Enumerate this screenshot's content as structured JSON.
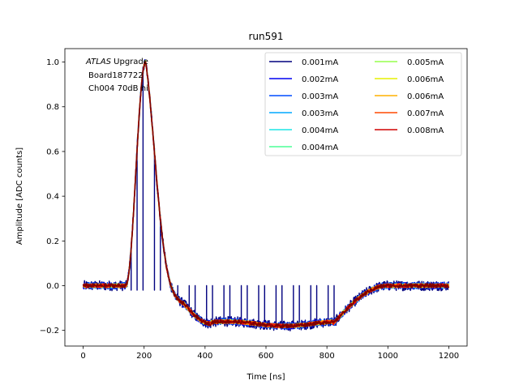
{
  "chart_data": {
    "type": "line",
    "title": "run591",
    "xlabel": "Time [ns]",
    "ylabel": "Amplitude [ADC counts]",
    "xlim": [
      -60,
      1260
    ],
    "ylim": [
      -0.27,
      1.06
    ],
    "xticks": [
      0,
      200,
      400,
      600,
      800,
      1000,
      1200
    ],
    "yticks": [
      -0.2,
      0.0,
      0.2,
      0.4,
      0.6,
      0.8,
      1.0
    ],
    "xtick_labels": [
      "0",
      "200",
      "400",
      "600",
      "800",
      "1000",
      "1200"
    ],
    "ytick_labels": [
      "−0.2",
      "0.0",
      "0.2",
      "0.4",
      "0.6",
      "0.8",
      "1.0"
    ],
    "grid": false,
    "legend_location": "upper-right",
    "legend_columns": 2,
    "annotation": {
      "line1_italic": "ATLAS",
      "line1_rest": " Upgrade",
      "line2": "Board187722",
      "line3": "Ch004 70dB hi"
    },
    "series": [
      {
        "name": "0.001mA",
        "color": "#00007f"
      },
      {
        "name": "0.002mA",
        "color": "#0000f1"
      },
      {
        "name": "0.003mA",
        "color": "#004cff"
      },
      {
        "name": "0.003mA",
        "color": "#00b0ff"
      },
      {
        "name": "0.004mA",
        "color": "#29ffce"
      },
      {
        "name": "0.004mA",
        "color": "#7dff7a"
      },
      {
        "name": "0.005mA",
        "color": "#ceff29"
      },
      {
        "name": "0.006mA",
        "color": "#ffc400"
      },
      {
        "name": "0.006mA",
        "color": "#ff6800"
      },
      {
        "name": "0.007mA",
        "color": "#f10800"
      },
      {
        "name": "0.008mA",
        "color": "#7f0000"
      }
    ],
    "legend_entries": [
      {
        "name": "0.001mA",
        "color": "#00007f"
      },
      {
        "name": "0.002mA",
        "color": "#0000f1"
      },
      {
        "name": "0.003mA",
        "color": "#004cff"
      },
      {
        "name": "0.003mA",
        "color": "#00a8ff"
      },
      {
        "name": "0.004mA",
        "color": "#1ce6e6"
      },
      {
        "name": "0.004mA",
        "color": "#4cff96"
      },
      {
        "name": "0.005mA",
        "color": "#96ff4c"
      },
      {
        "name": "0.006mA",
        "color": "#e6f000"
      },
      {
        "name": "0.006mA",
        "color": "#ffb000"
      },
      {
        "name": "0.007mA",
        "color": "#ff4800"
      },
      {
        "name": "0.008mA",
        "color": "#d00000"
      }
    ],
    "pulse_shape": {
      "baseline": 0.0,
      "peak": 1.0,
      "peak_time_ns": 205,
      "undershoot": -0.17,
      "undershoot_start_ns": 360,
      "undershoot_end_ns": 820,
      "recovery_ns": 1000,
      "end_ns": 1200
    }
  }
}
